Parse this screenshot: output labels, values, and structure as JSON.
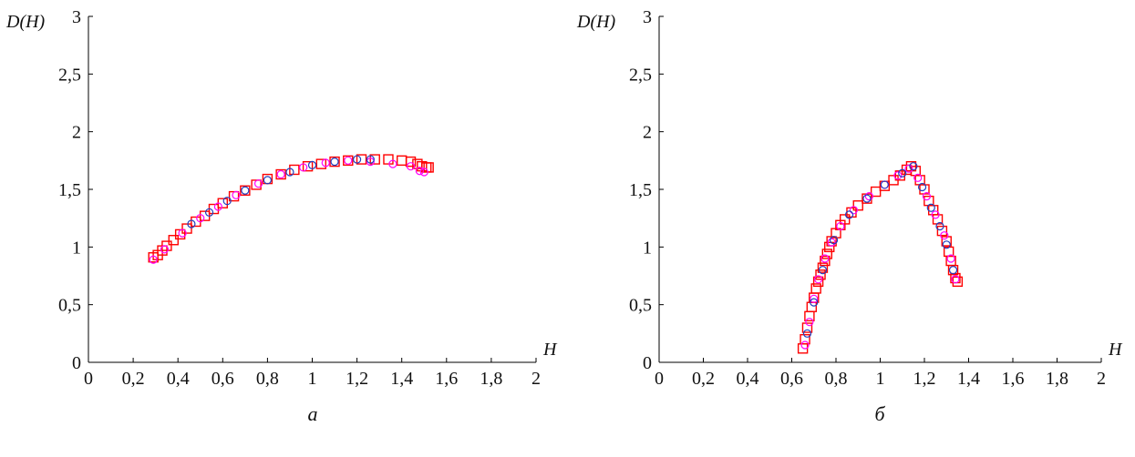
{
  "chart_data": [
    {
      "type": "scatter",
      "caption": "a",
      "ylabel": "D(H)",
      "xlabel": "H",
      "xlim": [
        0,
        2
      ],
      "ylim": [
        0,
        3
      ],
      "xticks": [
        "0",
        "0,2",
        "0,4",
        "0,6",
        "0,8",
        "1",
        "1,2",
        "1,4",
        "1,6",
        "1,8",
        "2"
      ],
      "yticks": [
        "0",
        "0,5",
        "1",
        "1,5",
        "2",
        "2,5",
        "3"
      ],
      "grid": false,
      "series": [
        {
          "color": "#ff0000",
          "marker": "square",
          "points": [
            [
              0.29,
              0.91
            ],
            [
              0.31,
              0.93
            ],
            [
              0.33,
              0.97
            ],
            [
              0.35,
              1.01
            ],
            [
              0.38,
              1.06
            ],
            [
              0.41,
              1.11
            ],
            [
              0.44,
              1.16
            ],
            [
              0.48,
              1.22
            ],
            [
              0.52,
              1.27
            ],
            [
              0.56,
              1.33
            ],
            [
              0.6,
              1.38
            ],
            [
              0.65,
              1.44
            ],
            [
              0.7,
              1.49
            ],
            [
              0.75,
              1.54
            ],
            [
              0.8,
              1.59
            ],
            [
              0.86,
              1.63
            ],
            [
              0.92,
              1.67
            ],
            [
              0.98,
              1.7
            ],
            [
              1.04,
              1.72
            ],
            [
              1.1,
              1.74
            ],
            [
              1.16,
              1.75
            ],
            [
              1.22,
              1.76
            ],
            [
              1.28,
              1.76
            ],
            [
              1.34,
              1.76
            ],
            [
              1.4,
              1.75
            ],
            [
              1.44,
              1.74
            ],
            [
              1.47,
              1.72
            ],
            [
              1.49,
              1.7
            ],
            [
              1.51,
              1.69
            ],
            [
              1.52,
              1.69
            ]
          ]
        },
        {
          "color": "#ff00ff",
          "marker": "circle",
          "points": [
            [
              0.29,
              0.89
            ],
            [
              0.34,
              0.98
            ],
            [
              0.42,
              1.12
            ],
            [
              0.5,
              1.25
            ],
            [
              0.58,
              1.35
            ],
            [
              0.66,
              1.45
            ],
            [
              0.76,
              1.55
            ],
            [
              0.86,
              1.63
            ],
            [
              0.96,
              1.69
            ],
            [
              1.06,
              1.73
            ],
            [
              1.16,
              1.75
            ],
            [
              1.26,
              1.74
            ],
            [
              1.36,
              1.72
            ],
            [
              1.44,
              1.7
            ],
            [
              1.48,
              1.66
            ],
            [
              1.5,
              1.65
            ]
          ]
        },
        {
          "color": "#1f3fbf",
          "marker": "circle",
          "points": [
            [
              0.46,
              1.2
            ],
            [
              0.54,
              1.3
            ],
            [
              0.62,
              1.4
            ],
            [
              0.7,
              1.49
            ],
            [
              0.8,
              1.58
            ],
            [
              0.9,
              1.65
            ],
            [
              1.0,
              1.71
            ],
            [
              1.1,
              1.74
            ],
            [
              1.2,
              1.76
            ],
            [
              1.26,
              1.76
            ]
          ]
        }
      ]
    },
    {
      "type": "scatter",
      "caption": "б",
      "ylabel": "D(H)",
      "xlabel": "H",
      "xlim": [
        0,
        2
      ],
      "ylim": [
        0,
        3
      ],
      "xticks": [
        "0",
        "0,2",
        "0,4",
        "0,6",
        "0,8",
        "1",
        "1,2",
        "1,4",
        "1,6",
        "1,8",
        "2"
      ],
      "yticks": [
        "0",
        "0,5",
        "1",
        "1,5",
        "2",
        "2,5",
        "3"
      ],
      "grid": false,
      "series": [
        {
          "color": "#ff0000",
          "marker": "square",
          "points": [
            [
              0.65,
              0.12
            ],
            [
              0.66,
              0.2
            ],
            [
              0.67,
              0.3
            ],
            [
              0.68,
              0.4
            ],
            [
              0.69,
              0.48
            ],
            [
              0.7,
              0.56
            ],
            [
              0.71,
              0.64
            ],
            [
              0.72,
              0.7
            ],
            [
              0.73,
              0.76
            ],
            [
              0.74,
              0.82
            ],
            [
              0.75,
              0.88
            ],
            [
              0.76,
              0.94
            ],
            [
              0.77,
              1.0
            ],
            [
              0.78,
              1.05
            ],
            [
              0.8,
              1.12
            ],
            [
              0.82,
              1.19
            ],
            [
              0.84,
              1.24
            ],
            [
              0.87,
              1.3
            ],
            [
              0.9,
              1.36
            ],
            [
              0.94,
              1.42
            ],
            [
              0.98,
              1.48
            ],
            [
              1.02,
              1.53
            ],
            [
              1.06,
              1.58
            ],
            [
              1.09,
              1.62
            ],
            [
              1.12,
              1.67
            ],
            [
              1.14,
              1.7
            ],
            [
              1.16,
              1.66
            ],
            [
              1.18,
              1.58
            ],
            [
              1.2,
              1.5
            ],
            [
              1.22,
              1.4
            ],
            [
              1.24,
              1.32
            ],
            [
              1.26,
              1.24
            ],
            [
              1.28,
              1.14
            ],
            [
              1.3,
              1.05
            ],
            [
              1.31,
              0.96
            ],
            [
              1.32,
              0.88
            ],
            [
              1.33,
              0.8
            ],
            [
              1.34,
              0.73
            ],
            [
              1.35,
              0.7
            ]
          ]
        },
        {
          "color": "#ff00ff",
          "marker": "circle",
          "points": [
            [
              0.66,
              0.15
            ],
            [
              0.68,
              0.35
            ],
            [
              0.7,
              0.55
            ],
            [
              0.72,
              0.72
            ],
            [
              0.75,
              0.9
            ],
            [
              0.78,
              1.04
            ],
            [
              0.82,
              1.18
            ],
            [
              0.88,
              1.32
            ],
            [
              0.95,
              1.44
            ],
            [
              1.02,
              1.54
            ],
            [
              1.08,
              1.62
            ],
            [
              1.13,
              1.68
            ],
            [
              1.17,
              1.6
            ],
            [
              1.21,
              1.44
            ],
            [
              1.25,
              1.28
            ],
            [
              1.29,
              1.1
            ],
            [
              1.32,
              0.9
            ],
            [
              1.34,
              0.72
            ]
          ]
        },
        {
          "color": "#1f3fbf",
          "marker": "circle",
          "points": [
            [
              0.67,
              0.25
            ],
            [
              0.7,
              0.52
            ],
            [
              0.74,
              0.8
            ],
            [
              0.79,
              1.06
            ],
            [
              0.86,
              1.28
            ],
            [
              0.94,
              1.42
            ],
            [
              1.02,
              1.54
            ],
            [
              1.1,
              1.64
            ],
            [
              1.15,
              1.7
            ],
            [
              1.19,
              1.52
            ],
            [
              1.23,
              1.34
            ],
            [
              1.27,
              1.18
            ],
            [
              1.3,
              1.02
            ],
            [
              1.33,
              0.8
            ]
          ]
        }
      ]
    }
  ]
}
